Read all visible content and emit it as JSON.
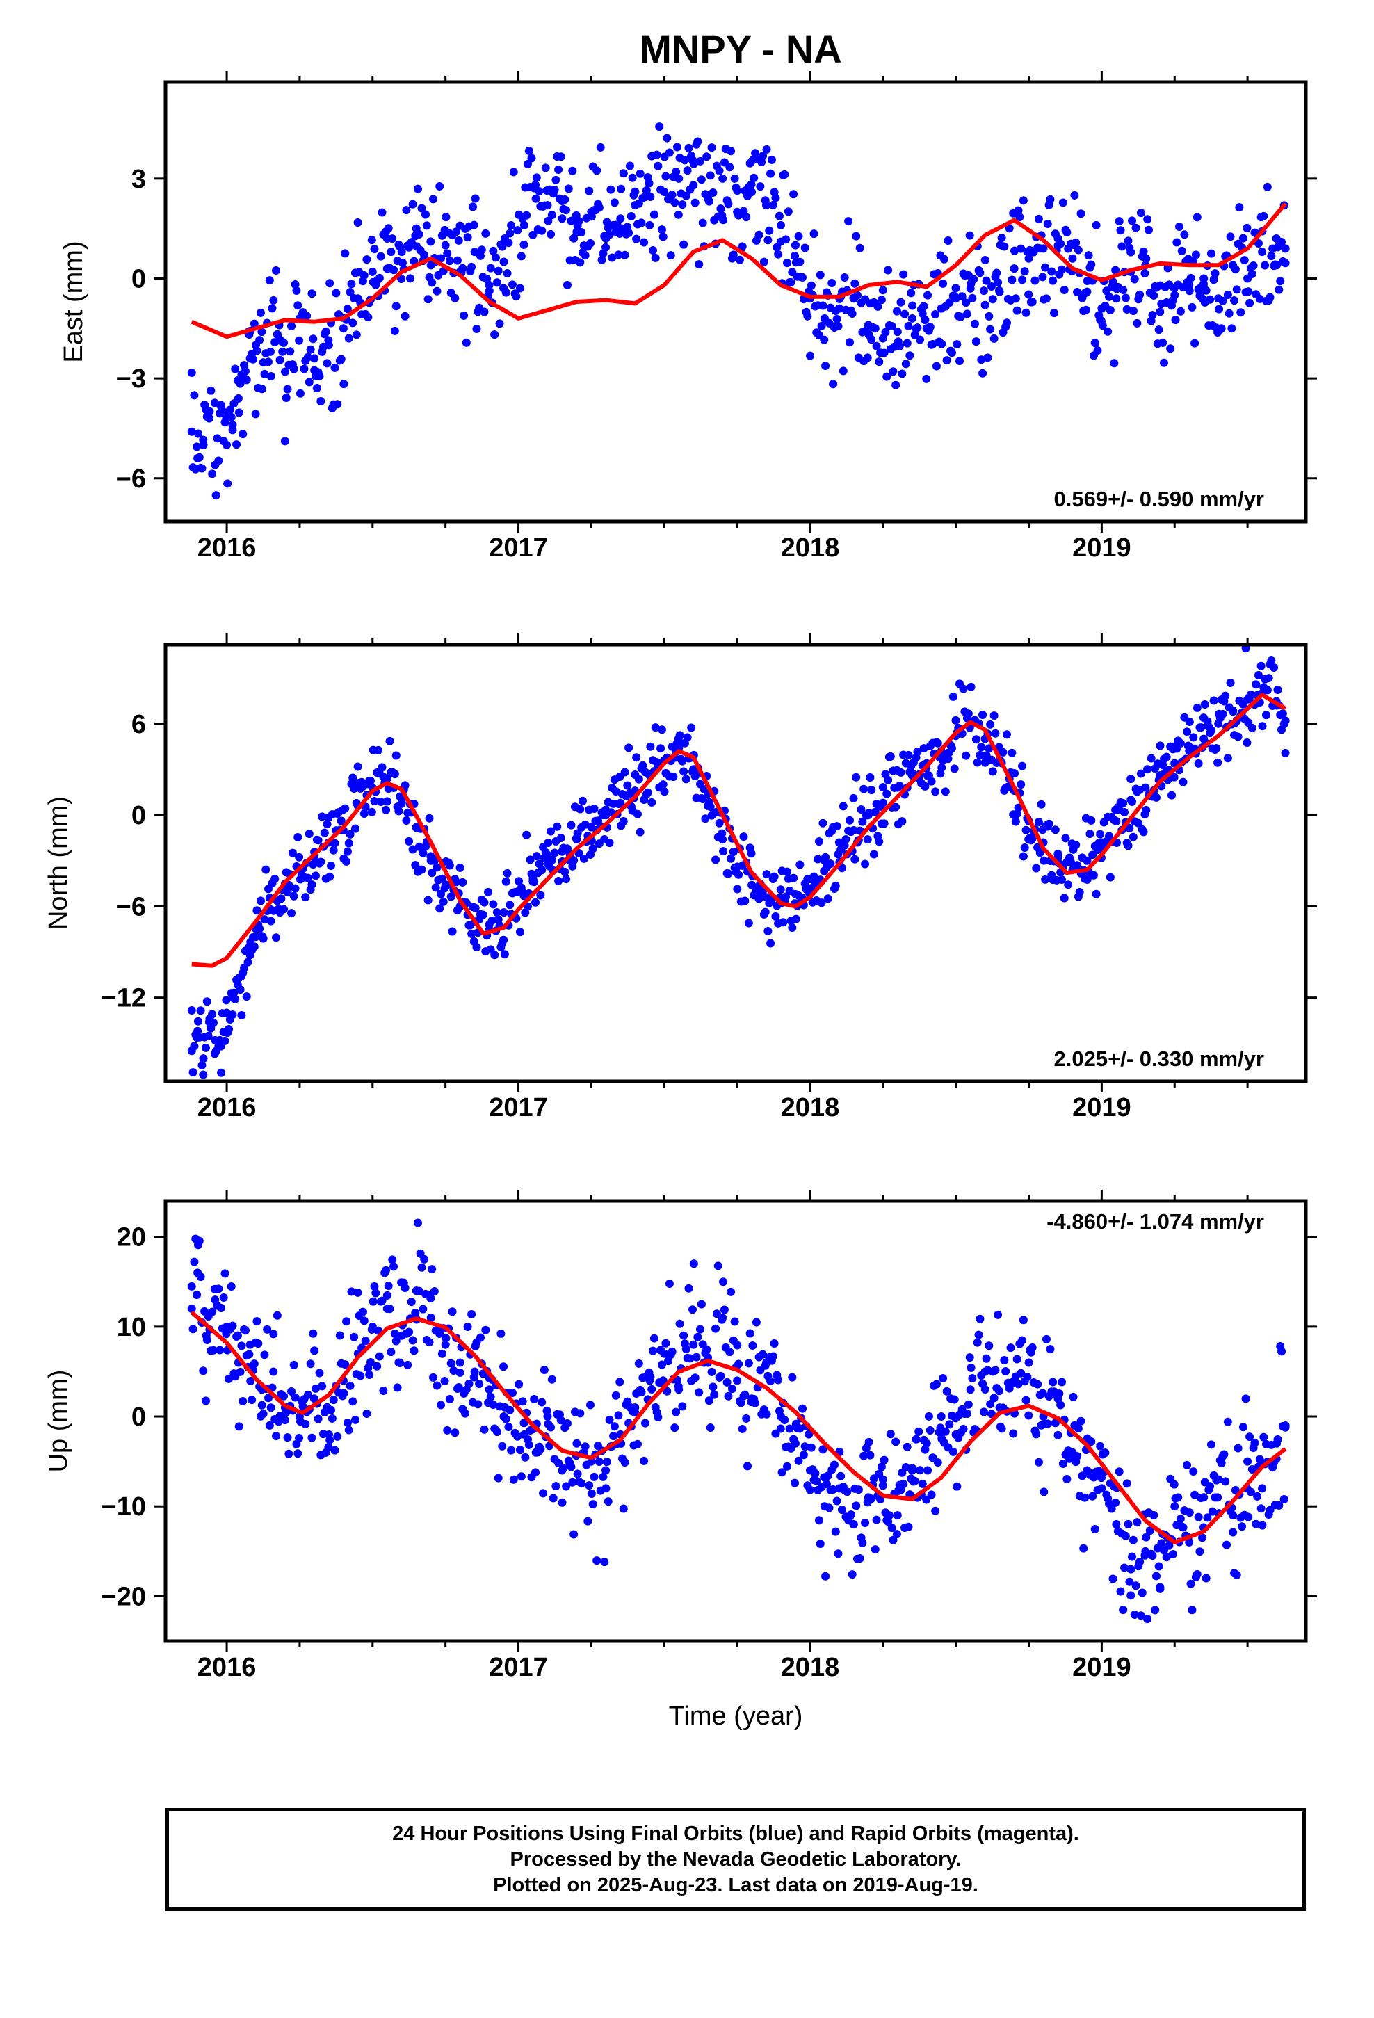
{
  "title": "MNPY - NA",
  "footer": {
    "line1": "24 Hour Positions Using Final Orbits (blue) and Rapid Orbits (magenta).",
    "line2": "Processed by the Nevada Geodetic Laboratory.",
    "line3": "Plotted on 2025-Aug-23. Last data on 2019-Aug-19."
  },
  "colors": {
    "points": "#0000ff",
    "fit": "#ff0000",
    "axes": "#000000"
  },
  "chart_data": [
    {
      "type": "scatter",
      "title": "",
      "ylabel": "East (mm)",
      "xlabel": "",
      "xlim": [
        2015.79,
        2019.7
      ],
      "ylim": [
        -7.3,
        5.9
      ],
      "xticks": [
        2016,
        2017,
        2018,
        2019
      ],
      "xtick_labels": [
        "2016",
        "2017",
        "2018",
        "2019"
      ],
      "yticks": [
        3,
        0,
        -3,
        -6
      ],
      "ytick_labels": [
        "3",
        "0",
        "−3",
        "−6"
      ],
      "rate_label": "0.569+/- 0.590 mm/yr",
      "rate_position": "bottom-right",
      "grid": false,
      "series": [
        {
          "role": "daily positions",
          "style": "points",
          "x": [
            2015.88,
            2015.9,
            2015.92,
            2015.94,
            2015.96,
            2015.98,
            2016.0,
            2016.02,
            2016.04,
            2016.06,
            2016.08,
            2016.1,
            2016.12,
            2016.15,
            2016.18,
            2016.2,
            2016.25,
            2016.3,
            2016.35,
            2016.4,
            2016.45,
            2016.5,
            2016.55,
            2016.6,
            2016.65,
            2016.7,
            2016.75,
            2016.8,
            2016.85,
            2016.9,
            2016.95,
            2017.02,
            2017.06,
            2017.1,
            2017.15,
            2017.2,
            2017.25,
            2017.3,
            2017.35,
            2017.4,
            2017.45,
            2017.5,
            2017.55,
            2017.6,
            2017.65,
            2017.7,
            2017.75,
            2017.8,
            2017.85,
            2017.9,
            2017.95,
            2018.0,
            2018.05,
            2018.1,
            2018.15,
            2018.2,
            2018.25,
            2018.3,
            2018.35,
            2018.4,
            2018.45,
            2018.5,
            2018.55,
            2018.6,
            2018.65,
            2018.7,
            2018.75,
            2018.8,
            2018.85,
            2018.9,
            2018.95,
            2019.0,
            2019.05,
            2019.1,
            2019.15,
            2019.2,
            2019.25,
            2019.3,
            2019.35,
            2019.4,
            2019.45,
            2019.5,
            2019.55,
            2019.6,
            2019.63
          ],
          "y": [
            -4.6,
            -5.4,
            -5.0,
            -4.2,
            -5.6,
            -3.8,
            -5.0,
            -4.4,
            -3.6,
            -3.0,
            -2.4,
            -2.0,
            -1.6,
            -2.2,
            -1.4,
            -2.8,
            -1.2,
            -2.4,
            -2.0,
            -1.5,
            -0.6,
            0.2,
            1.2,
            0.8,
            1.5,
            0.4,
            1.0,
            0.2,
            0.8,
            -0.2,
            0.5,
            1.6,
            2.4,
            2.2,
            1.8,
            1.4,
            2.0,
            1.2,
            1.8,
            2.2,
            1.6,
            2.6,
            3.0,
            2.8,
            2.4,
            3.0,
            2.0,
            2.6,
            2.2,
            1.6,
            1.0,
            -0.6,
            -1.2,
            -0.9,
            -0.6,
            -1.4,
            -1.8,
            -1.6,
            -1.2,
            -1.5,
            -0.9,
            -0.6,
            -0.3,
            -0.8,
            -0.4,
            0.3,
            0.6,
            0.9,
            1.2,
            0.6,
            -0.4,
            -0.9,
            -0.6,
            0.2,
            0.4,
            -1.0,
            -0.5,
            -0.2,
            0.0,
            -0.6,
            0.4,
            0.0,
            0.8,
            0.4,
            0.9
          ]
        },
        {
          "role": "model fit",
          "style": "line",
          "x": [
            2015.88,
            2016.0,
            2016.1,
            2016.2,
            2016.3,
            2016.4,
            2016.5,
            2016.6,
            2016.7,
            2016.8,
            2016.9,
            2017.0,
            2017.1,
            2017.2,
            2017.3,
            2017.4,
            2017.5,
            2017.6,
            2017.7,
            2017.8,
            2017.9,
            2018.0,
            2018.1,
            2018.2,
            2018.3,
            2018.4,
            2018.5,
            2018.6,
            2018.7,
            2018.8,
            2018.9,
            2019.0,
            2019.1,
            2019.2,
            2019.3,
            2019.4,
            2019.5,
            2019.63
          ],
          "y": [
            -1.3,
            -1.75,
            -1.5,
            -1.25,
            -1.3,
            -1.2,
            -0.6,
            0.2,
            0.6,
            0.1,
            -0.7,
            -1.2,
            -0.95,
            -0.7,
            -0.65,
            -0.75,
            -0.2,
            0.8,
            1.15,
            0.6,
            -0.2,
            -0.55,
            -0.55,
            -0.2,
            -0.1,
            -0.25,
            0.4,
            1.3,
            1.75,
            1.15,
            0.3,
            -0.05,
            0.25,
            0.45,
            0.4,
            0.4,
            0.9,
            2.25
          ]
        }
      ]
    },
    {
      "type": "scatter",
      "title": "",
      "ylabel": "North (mm)",
      "xlabel": "",
      "xlim": [
        2015.79,
        2019.7
      ],
      "ylim": [
        -17.5,
        11.2
      ],
      "xticks": [
        2016,
        2017,
        2018,
        2019
      ],
      "xtick_labels": [
        "2016",
        "2017",
        "2018",
        "2019"
      ],
      "yticks": [
        6,
        0,
        -6,
        -12
      ],
      "ytick_labels": [
        "6",
        "0",
        "−6",
        "−12"
      ],
      "rate_label": "2.025+/- 0.330 mm/yr",
      "rate_position": "bottom-right",
      "grid": false,
      "series": [
        {
          "role": "daily positions",
          "style": "points",
          "x": [
            2015.88,
            2015.9,
            2015.92,
            2015.94,
            2015.96,
            2015.98,
            2016.0,
            2016.02,
            2016.05,
            2016.08,
            2016.1,
            2016.15,
            2016.2,
            2016.25,
            2016.3,
            2016.35,
            2016.4,
            2016.45,
            2016.5,
            2016.55,
            2016.6,
            2016.65,
            2016.7,
            2016.75,
            2016.8,
            2016.85,
            2016.9,
            2016.95,
            2017.0,
            2017.05,
            2017.1,
            2017.15,
            2017.2,
            2017.25,
            2017.3,
            2017.35,
            2017.4,
            2017.45,
            2017.5,
            2017.55,
            2017.6,
            2017.65,
            2017.7,
            2017.75,
            2017.8,
            2017.85,
            2017.9,
            2017.95,
            2018.0,
            2018.05,
            2018.1,
            2018.15,
            2018.2,
            2018.25,
            2018.3,
            2018.35,
            2018.4,
            2018.45,
            2018.5,
            2018.55,
            2018.6,
            2018.65,
            2018.7,
            2018.75,
            2018.8,
            2018.85,
            2018.9,
            2018.95,
            2019.0,
            2019.05,
            2019.1,
            2019.15,
            2019.2,
            2019.25,
            2019.3,
            2019.35,
            2019.4,
            2019.45,
            2019.5,
            2019.55,
            2019.6,
            2019.63
          ],
          "y": [
            -15.5,
            -14.2,
            -16.0,
            -13.6,
            -14.8,
            -15.2,
            -13.0,
            -12.0,
            -10.6,
            -9.2,
            -8.0,
            -6.2,
            -4.6,
            -3.6,
            -2.8,
            -1.8,
            -1.0,
            0.6,
            1.8,
            2.4,
            0.8,
            -0.8,
            -3.0,
            -4.6,
            -6.0,
            -7.0,
            -7.2,
            -6.4,
            -5.0,
            -4.2,
            -3.2,
            -2.4,
            -1.6,
            -0.8,
            0.0,
            0.8,
            1.6,
            2.6,
            3.6,
            4.4,
            3.0,
            0.6,
            -1.6,
            -3.4,
            -4.6,
            -5.4,
            -5.8,
            -5.2,
            -4.2,
            -3.0,
            -1.8,
            -1.0,
            0.0,
            0.8,
            1.8,
            2.6,
            3.4,
            4.2,
            5.2,
            6.0,
            5.0,
            3.6,
            1.6,
            -0.4,
            -1.8,
            -2.8,
            -3.6,
            -3.0,
            -1.8,
            -0.4,
            1.0,
            1.8,
            2.6,
            3.4,
            4.2,
            5.0,
            6.0,
            6.8,
            7.6,
            8.0,
            7.2,
            6.2
          ]
        },
        {
          "role": "model fit",
          "style": "line",
          "x": [
            2015.88,
            2015.95,
            2016.0,
            2016.1,
            2016.2,
            2016.3,
            2016.4,
            2016.5,
            2016.55,
            2016.6,
            2016.7,
            2016.8,
            2016.88,
            2016.95,
            2017.0,
            2017.1,
            2017.2,
            2017.3,
            2017.4,
            2017.5,
            2017.55,
            2017.6,
            2017.7,
            2017.8,
            2017.9,
            2017.95,
            2018.0,
            2018.1,
            2018.2,
            2018.3,
            2018.4,
            2018.5,
            2018.55,
            2018.6,
            2018.7,
            2018.8,
            2018.88,
            2018.95,
            2019.0,
            2019.1,
            2019.2,
            2019.3,
            2019.4,
            2019.5,
            2019.55,
            2019.63
          ],
          "y": [
            -9.8,
            -9.9,
            -9.4,
            -7.0,
            -4.4,
            -2.6,
            -0.8,
            1.6,
            2.1,
            1.7,
            -1.8,
            -5.6,
            -7.8,
            -7.4,
            -6.2,
            -4.2,
            -2.2,
            -0.6,
            1.2,
            3.4,
            4.2,
            3.8,
            0.0,
            -3.8,
            -5.8,
            -6.0,
            -5.4,
            -3.2,
            -0.8,
            1.2,
            3.2,
            5.4,
            6.1,
            5.6,
            1.8,
            -2.2,
            -3.8,
            -3.6,
            -2.6,
            -0.2,
            2.2,
            3.8,
            5.2,
            7.0,
            7.9,
            7.0
          ]
        }
      ]
    },
    {
      "type": "scatter",
      "title": "",
      "ylabel": "Up (mm)",
      "xlabel": "Time (year)",
      "xlim": [
        2015.79,
        2019.7
      ],
      "ylim": [
        -25,
        24
      ],
      "xticks": [
        2016,
        2017,
        2018,
        2019
      ],
      "xtick_labels": [
        "2016",
        "2017",
        "2018",
        "2019"
      ],
      "yticks": [
        20,
        10,
        0,
        -10,
        -20
      ],
      "ytick_labels": [
        "20",
        "10",
        "0",
        "−10",
        "−20"
      ],
      "rate_label": "-4.860+/- 1.074 mm/yr",
      "rate_position": "top-right",
      "grid": false,
      "series": [
        {
          "role": "daily positions",
          "style": "points",
          "x": [
            2015.88,
            2015.9,
            2015.93,
            2015.96,
            2016.0,
            2016.04,
            2016.08,
            2016.12,
            2016.16,
            2016.2,
            2016.25,
            2016.3,
            2016.35,
            2016.4,
            2016.45,
            2016.5,
            2016.55,
            2016.6,
            2016.65,
            2016.7,
            2016.75,
            2016.8,
            2016.85,
            2016.9,
            2016.95,
            2017.02,
            2017.06,
            2017.1,
            2017.15,
            2017.2,
            2017.25,
            2017.3,
            2017.35,
            2017.4,
            2017.45,
            2017.5,
            2017.55,
            2017.6,
            2017.65,
            2017.7,
            2017.75,
            2017.8,
            2017.85,
            2017.9,
            2017.95,
            2018.0,
            2018.05,
            2018.1,
            2018.15,
            2018.2,
            2018.25,
            2018.3,
            2018.35,
            2018.4,
            2018.45,
            2018.5,
            2018.55,
            2018.6,
            2018.65,
            2018.7,
            2018.75,
            2018.8,
            2018.85,
            2018.9,
            2018.95,
            2019.0,
            2019.05,
            2019.1,
            2019.15,
            2019.2,
            2019.25,
            2019.3,
            2019.35,
            2019.4,
            2019.45,
            2019.5,
            2019.55,
            2019.6,
            2019.63
          ],
          "y": [
            12,
            16,
            9,
            13,
            10,
            6,
            8,
            3,
            5,
            1,
            0,
            2,
            -2,
            4,
            7,
            10,
            12,
            9,
            14,
            11,
            8,
            6,
            5,
            3,
            0,
            -2,
            -4,
            0,
            -6,
            -3,
            -5,
            -8,
            -2,
            1,
            4,
            7,
            3,
            8,
            6,
            11,
            4,
            2,
            6,
            0,
            -3,
            -6,
            -10,
            -8,
            -12,
            -9,
            -7,
            -11,
            -6,
            -3,
            0,
            -2,
            3,
            5,
            1,
            4,
            6,
            0,
            2,
            -4,
            -6,
            -8,
            -12,
            -17,
            -15,
            -19,
            -10,
            -14,
            -9,
            -7,
            -11,
            -5,
            -8,
            -3,
            -1
          ]
        },
        {
          "role": "model fit",
          "style": "line",
          "x": [
            2015.88,
            2016.0,
            2016.1,
            2016.2,
            2016.26,
            2016.35,
            2016.45,
            2016.55,
            2016.65,
            2016.75,
            2016.85,
            2016.95,
            2017.05,
            2017.15,
            2017.25,
            2017.35,
            2017.45,
            2017.55,
            2017.65,
            2017.75,
            2017.85,
            2017.95,
            2018.05,
            2018.15,
            2018.25,
            2018.35,
            2018.45,
            2018.55,
            2018.65,
            2018.75,
            2018.85,
            2018.95,
            2019.05,
            2019.15,
            2019.25,
            2019.35,
            2019.45,
            2019.55,
            2019.63
          ],
          "y": [
            11.6,
            8.2,
            4.2,
            1.2,
            0.4,
            2.4,
            6.6,
            9.8,
            10.9,
            9.9,
            6.8,
            2.8,
            -1.0,
            -3.8,
            -4.6,
            -2.6,
            1.6,
            5.0,
            6.2,
            5.2,
            3.2,
            0.5,
            -3.0,
            -6.2,
            -8.8,
            -9.2,
            -6.8,
            -2.8,
            0.4,
            1.2,
            -0.2,
            -3.2,
            -7.4,
            -11.6,
            -14.0,
            -12.8,
            -9.4,
            -5.6,
            -3.6
          ]
        }
      ]
    }
  ]
}
